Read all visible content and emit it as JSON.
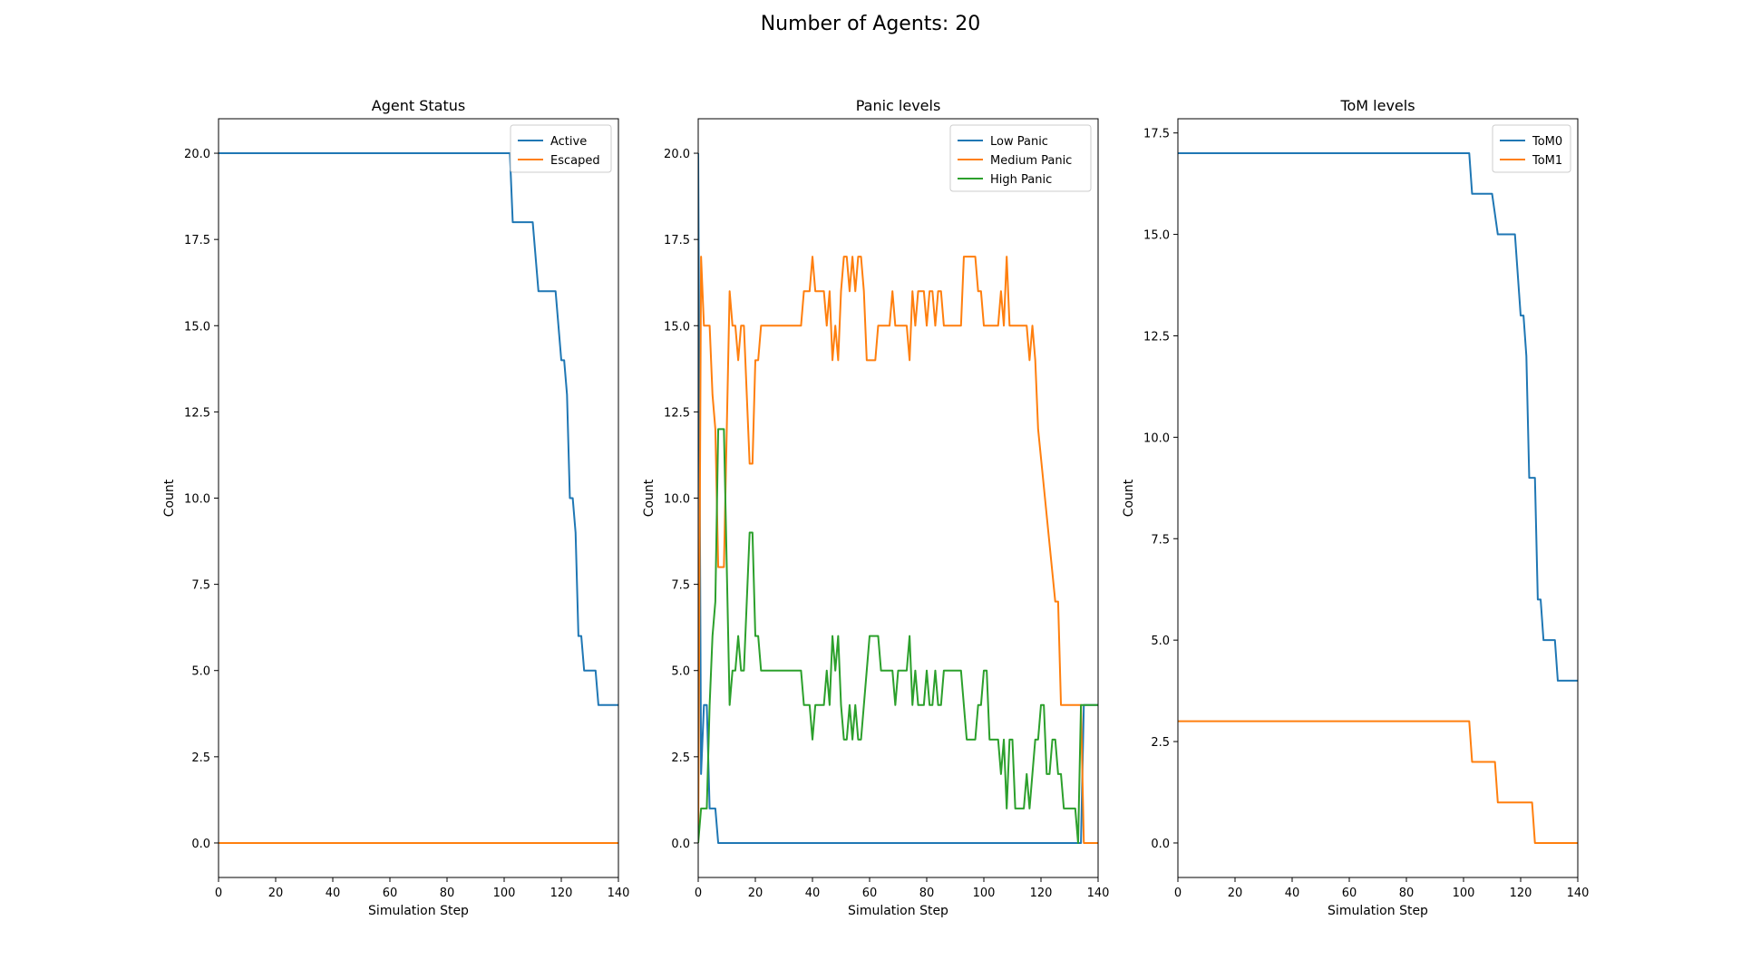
{
  "figure": {
    "suptitle": "Number of Agents: 20"
  },
  "colors": {
    "blue": "#1f77b4",
    "orange": "#ff7f0e",
    "green": "#2ca02c"
  },
  "chart_data": [
    {
      "type": "line",
      "title": "Agent Status",
      "xlabel": "Simulation Step",
      "ylabel": "Count",
      "xlim": [
        0,
        140
      ],
      "ylim": [
        -1,
        21
      ],
      "xticks": [
        0,
        20,
        40,
        60,
        80,
        100,
        120,
        140
      ],
      "yticks": [
        0.0,
        2.5,
        5.0,
        7.5,
        10.0,
        12.5,
        15.0,
        17.5,
        20.0
      ],
      "legend": "top-right",
      "grid": false,
      "series": [
        {
          "name": "Active",
          "color": "#1f77b4",
          "points": [
            [
              0,
              20
            ],
            [
              102,
              20
            ],
            [
              103,
              18
            ],
            [
              110,
              18
            ],
            [
              112,
              16
            ],
            [
              118,
              16
            ],
            [
              120,
              14
            ],
            [
              121,
              14
            ],
            [
              122,
              13
            ],
            [
              123,
              10
            ],
            [
              124,
              10
            ],
            [
              125,
              9
            ],
            [
              126,
              6
            ],
            [
              127,
              6
            ],
            [
              128,
              5
            ],
            [
              132,
              5
            ],
            [
              133,
              4
            ],
            [
              140,
              4
            ]
          ]
        },
        {
          "name": "Escaped",
          "color": "#ff7f0e",
          "points": [
            [
              0,
              0
            ],
            [
              140,
              0
            ]
          ]
        }
      ]
    },
    {
      "type": "line",
      "title": "Panic levels",
      "xlabel": "Simulation Step",
      "ylabel": "Count",
      "xlim": [
        0,
        140
      ],
      "ylim": [
        -1,
        21
      ],
      "xticks": [
        0,
        20,
        40,
        60,
        80,
        100,
        120,
        140
      ],
      "yticks": [
        0.0,
        2.5,
        5.0,
        7.5,
        10.0,
        12.5,
        15.0,
        17.5,
        20.0
      ],
      "legend": "top-right",
      "grid": false,
      "series": [
        {
          "name": "Low Panic",
          "color": "#1f77b4",
          "points": [
            [
              0,
              20
            ],
            [
              1,
              2
            ],
            [
              2,
              4
            ],
            [
              3,
              4
            ],
            [
              4,
              1
            ],
            [
              6,
              1
            ],
            [
              7,
              0
            ],
            [
              134,
              0
            ],
            [
              135,
              4
            ],
            [
              140,
              4
            ]
          ]
        },
        {
          "name": "Medium Panic",
          "color": "#ff7f0e",
          "points": [
            [
              0,
              0
            ],
            [
              1,
              17
            ],
            [
              2,
              15
            ],
            [
              4,
              15
            ],
            [
              5,
              13
            ],
            [
              6,
              12
            ],
            [
              7,
              8
            ],
            [
              9,
              8
            ],
            [
              10,
              12
            ],
            [
              11,
              16
            ],
            [
              12,
              15
            ],
            [
              13,
              15
            ],
            [
              14,
              14
            ],
            [
              15,
              15
            ],
            [
              16,
              15
            ],
            [
              17,
              13
            ],
            [
              18,
              11
            ],
            [
              19,
              11
            ],
            [
              20,
              14
            ],
            [
              21,
              14
            ],
            [
              22,
              15
            ],
            [
              36,
              15
            ],
            [
              37,
              16
            ],
            [
              39,
              16
            ],
            [
              40,
              17
            ],
            [
              41,
              16
            ],
            [
              44,
              16
            ],
            [
              45,
              15
            ],
            [
              46,
              16
            ],
            [
              47,
              14
            ],
            [
              48,
              15
            ],
            [
              49,
              14
            ],
            [
              50,
              16
            ],
            [
              51,
              17
            ],
            [
              52,
              17
            ],
            [
              53,
              16
            ],
            [
              54,
              17
            ],
            [
              55,
              16
            ],
            [
              56,
              17
            ],
            [
              57,
              17
            ],
            [
              58,
              16
            ],
            [
              59,
              14
            ],
            [
              62,
              14
            ],
            [
              63,
              15
            ],
            [
              67,
              15
            ],
            [
              68,
              16
            ],
            [
              69,
              15
            ],
            [
              73,
              15
            ],
            [
              74,
              14
            ],
            [
              75,
              16
            ],
            [
              76,
              15
            ],
            [
              77,
              16
            ],
            [
              79,
              16
            ],
            [
              80,
              15
            ],
            [
              81,
              16
            ],
            [
              82,
              16
            ],
            [
              83,
              15
            ],
            [
              84,
              16
            ],
            [
              85,
              16
            ],
            [
              86,
              15
            ],
            [
              92,
              15
            ],
            [
              93,
              17
            ],
            [
              97,
              17
            ],
            [
              98,
              16
            ],
            [
              99,
              16
            ],
            [
              100,
              15
            ],
            [
              105,
              15
            ],
            [
              106,
              16
            ],
            [
              107,
              15
            ],
            [
              108,
              17
            ],
            [
              109,
              15
            ],
            [
              115,
              15
            ],
            [
              116,
              14
            ],
            [
              117,
              15
            ],
            [
              118,
              14
            ],
            [
              119,
              12
            ],
            [
              125,
              7
            ],
            [
              126,
              7
            ],
            [
              127,
              4
            ],
            [
              134,
              4
            ],
            [
              135,
              0
            ],
            [
              140,
              0
            ]
          ]
        },
        {
          "name": "High Panic",
          "color": "#2ca02c",
          "points": [
            [
              0,
              0
            ],
            [
              1,
              1
            ],
            [
              3,
              1
            ],
            [
              4,
              4
            ],
            [
              5,
              6
            ],
            [
              6,
              7
            ],
            [
              7,
              12
            ],
            [
              9,
              12
            ],
            [
              10,
              8
            ],
            [
              11,
              4
            ],
            [
              12,
              5
            ],
            [
              13,
              5
            ],
            [
              14,
              6
            ],
            [
              15,
              5
            ],
            [
              16,
              5
            ],
            [
              17,
              7
            ],
            [
              18,
              9
            ],
            [
              19,
              9
            ],
            [
              20,
              6
            ],
            [
              21,
              6
            ],
            [
              22,
              5
            ],
            [
              36,
              5
            ],
            [
              37,
              4
            ],
            [
              39,
              4
            ],
            [
              40,
              3
            ],
            [
              41,
              4
            ],
            [
              44,
              4
            ],
            [
              45,
              5
            ],
            [
              46,
              4
            ],
            [
              47,
              6
            ],
            [
              48,
              5
            ],
            [
              49,
              6
            ],
            [
              50,
              4
            ],
            [
              51,
              3
            ],
            [
              52,
              3
            ],
            [
              53,
              4
            ],
            [
              54,
              3
            ],
            [
              55,
              4
            ],
            [
              56,
              3
            ],
            [
              57,
              3
            ],
            [
              58,
              4
            ],
            [
              59,
              5
            ],
            [
              60,
              6
            ],
            [
              63,
              6
            ],
            [
              64,
              5
            ],
            [
              68,
              5
            ],
            [
              69,
              4
            ],
            [
              70,
              5
            ],
            [
              73,
              5
            ],
            [
              74,
              6
            ],
            [
              75,
              4
            ],
            [
              76,
              5
            ],
            [
              77,
              4
            ],
            [
              79,
              4
            ],
            [
              80,
              5
            ],
            [
              81,
              4
            ],
            [
              82,
              4
            ],
            [
              83,
              5
            ],
            [
              84,
              4
            ],
            [
              85,
              4
            ],
            [
              86,
              5
            ],
            [
              92,
              5
            ],
            [
              93,
              4
            ],
            [
              94,
              3
            ],
            [
              97,
              3
            ],
            [
              98,
              4
            ],
            [
              99,
              4
            ],
            [
              100,
              5
            ],
            [
              101,
              5
            ],
            [
              102,
              3
            ],
            [
              105,
              3
            ],
            [
              106,
              2
            ],
            [
              107,
              3
            ],
            [
              108,
              1
            ],
            [
              109,
              3
            ],
            [
              110,
              3
            ],
            [
              111,
              1
            ],
            [
              114,
              1
            ],
            [
              115,
              2
            ],
            [
              116,
              1
            ],
            [
              117,
              2
            ],
            [
              118,
              3
            ],
            [
              119,
              3
            ],
            [
              120,
              4
            ],
            [
              121,
              4
            ],
            [
              122,
              2
            ],
            [
              123,
              2
            ],
            [
              124,
              3
            ],
            [
              125,
              3
            ],
            [
              126,
              2
            ],
            [
              127,
              2
            ],
            [
              128,
              1
            ],
            [
              132,
              1
            ],
            [
              133,
              0
            ],
            [
              134,
              4
            ],
            [
              140,
              4
            ]
          ]
        }
      ]
    },
    {
      "type": "line",
      "title": "ToM levels",
      "xlabel": "Simulation Step",
      "ylabel": "Count",
      "xlim": [
        0,
        140
      ],
      "ylim": [
        -0.85,
        17.85
      ],
      "xticks": [
        0,
        20,
        40,
        60,
        80,
        100,
        120,
        140
      ],
      "yticks": [
        0.0,
        2.5,
        5.0,
        7.5,
        10.0,
        12.5,
        15.0,
        17.5
      ],
      "legend": "top-right",
      "grid": false,
      "series": [
        {
          "name": "ToM0",
          "color": "#1f77b4",
          "points": [
            [
              0,
              17
            ],
            [
              102,
              17
            ],
            [
              103,
              16
            ],
            [
              110,
              16
            ],
            [
              112,
              15
            ],
            [
              118,
              15
            ],
            [
              120,
              13
            ],
            [
              121,
              13
            ],
            [
              122,
              12
            ],
            [
              123,
              9
            ],
            [
              125,
              9
            ],
            [
              126,
              6
            ],
            [
              127,
              6
            ],
            [
              128,
              5
            ],
            [
              132,
              5
            ],
            [
              133,
              4
            ],
            [
              140,
              4
            ]
          ]
        },
        {
          "name": "ToM1",
          "color": "#ff7f0e",
          "points": [
            [
              0,
              3
            ],
            [
              102,
              3
            ],
            [
              103,
              2
            ],
            [
              111,
              2
            ],
            [
              112,
              1
            ],
            [
              124,
              1
            ],
            [
              125,
              0
            ],
            [
              140,
              0
            ]
          ]
        }
      ]
    }
  ]
}
